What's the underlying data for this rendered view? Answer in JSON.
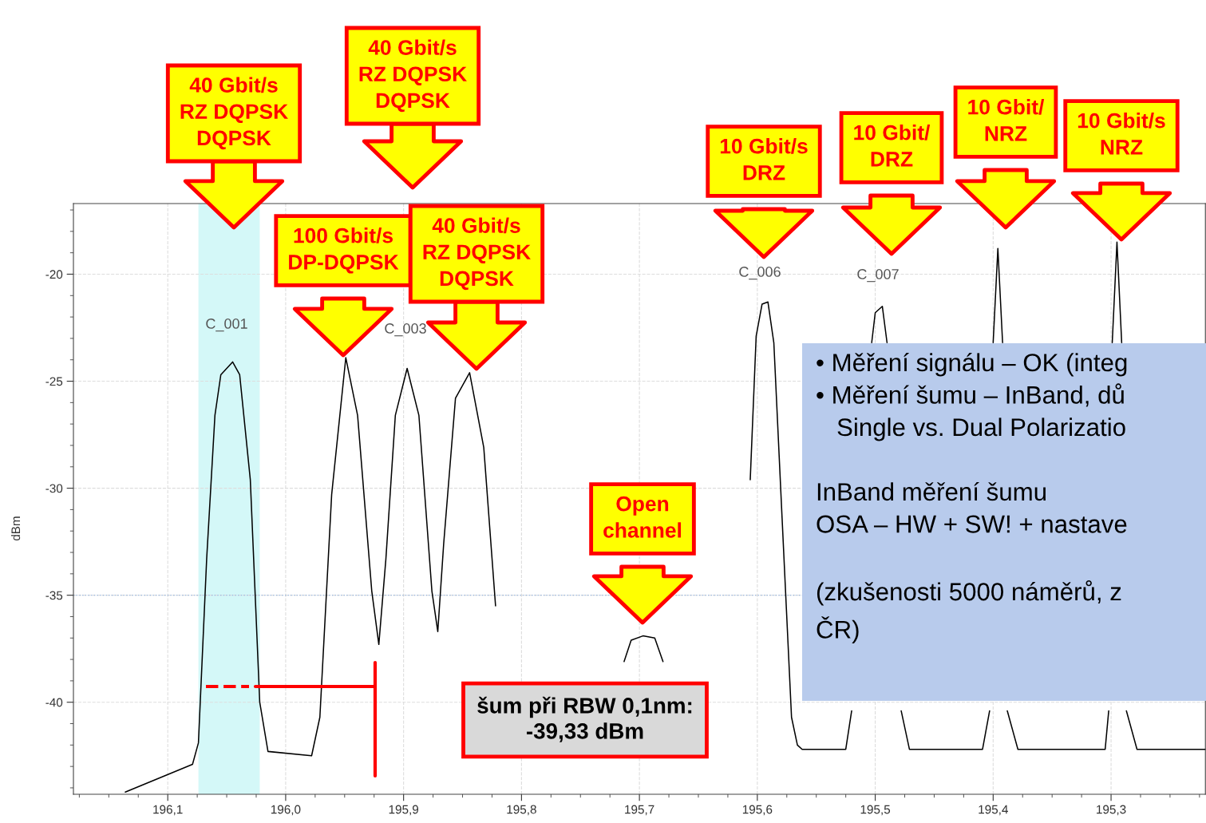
{
  "chart_data": {
    "type": "line",
    "ylabel": "dBm",
    "x": [
      196.136,
      196.079,
      196.074,
      196.067,
      196.06,
      196.055,
      196.045,
      196.039,
      196.03,
      196.022,
      196.015,
      195.978,
      195.971,
      195.961,
      195.949,
      195.939,
      195.927,
      195.921,
      195.915,
      195.907,
      195.897,
      195.887,
      195.876,
      195.871,
      195.866,
      195.856,
      195.844,
      195.832,
      195.822,
      195.815,
      195.713,
      195.707,
      195.697,
      195.687,
      195.68,
      195.65,
      195.613,
      195.606,
      195.601,
      195.596,
      195.591,
      195.586,
      195.579,
      195.571,
      195.566,
      195.562,
      195.525,
      195.52,
      195.51,
      195.503,
      195.5,
      195.494,
      195.49,
      195.485,
      195.478,
      195.471,
      195.409,
      195.403,
      195.401,
      195.4,
      195.396,
      195.392,
      195.39,
      195.388,
      195.379,
      195.305,
      195.302,
      195.3,
      195.299,
      195.295,
      195.291,
      195.289,
      195.287,
      195.278,
      195.22
    ],
    "series": [
      {
        "color": "#000000",
        "values": [
          -44.2,
          -42.9,
          -41.9,
          -33.3,
          -26.6,
          -24.7,
          -24.1,
          -24.7,
          -29.6,
          -40.0,
          -42.3,
          -42.5,
          -40.7,
          -30.3,
          -23.9,
          -26.6,
          -34.8,
          -37.3,
          -33.3,
          -26.6,
          -24.4,
          -26.6,
          -34.8,
          -36.7,
          -32.6,
          -25.8,
          -24.6,
          -28.1,
          -35.5,
          null,
          -38.1,
          -37.1,
          -36.9,
          -37.0,
          -38.1,
          null,
          null,
          -29.6,
          -22.9,
          -21.4,
          -21.3,
          -23.2,
          -31.4,
          -40.7,
          -42.0,
          -42.2,
          -42.2,
          -40.4,
          null,
          -23.2,
          -21.8,
          -21.5,
          -23.2,
          null,
          -40.4,
          -42.2,
          -42.2,
          -40.4,
          null,
          -23.2,
          -18.8,
          -23.2,
          null,
          -40.4,
          -42.2,
          -42.2,
          -40.4,
          null,
          -23.2,
          -18.5,
          -23.2,
          null,
          -40.4,
          -42.2,
          -42.2
        ]
      }
    ],
    "xlim": [
      196.18,
      195.22
    ],
    "ylim": [
      -44.3,
      -16.7
    ],
    "xticks": [
      {
        "value": 196.1,
        "label": "196,1"
      },
      {
        "value": 196.0,
        "label": "196,0"
      },
      {
        "value": 195.9,
        "label": "195,9"
      },
      {
        "value": 195.8,
        "label": "195,8"
      },
      {
        "value": 195.7,
        "label": "195,7"
      },
      {
        "value": 195.6,
        "label": "195,6"
      },
      {
        "value": 195.5,
        "label": "195,5"
      },
      {
        "value": 195.4,
        "label": "195,4"
      },
      {
        "value": 195.3,
        "label": "195,3"
      }
    ],
    "yticks": [
      -40,
      -35,
      -30,
      -25,
      -20
    ],
    "grid": true,
    "ref_lines": [
      {
        "axis": "y",
        "value": -35,
        "color": "#9ab8e0",
        "line_style": "dotted"
      }
    ],
    "bands": [
      {
        "axis": "x",
        "from": 196.074,
        "to": 196.022,
        "color": "#d4f8f8"
      }
    ],
    "annotations": [
      "40 Gbit/s\nRZ DQPSK\nDQPSK",
      "40 Gbit/s\nRZ DQPSK\nDQPSK",
      "100 Gbit/s\nDP-DQPSK",
      "40 Gbit/s\nRZ DQPSK\nDQPSK",
      "Open\nchannel",
      "10 Gbit/s\nDRZ",
      "10 Gbit/\nDRZ",
      "10 Gbit/\nNRZ",
      "10 Gbit/s\nNRZ",
      "šum při RBW 0,1nm:\n-39,33 dBm",
      "C_001",
      "C_003",
      "C_006",
      "C_007",
      "• Měření signálu – OK (integ\n• Měření šumu – InBand, dů\n   Single vs. Dual Polarizatio\n\nInBand měření šumu\nOSA – HW + SW! + nastave\n\n(zkušenosti 5000 náměrů, z\nČR)"
    ]
  }
}
